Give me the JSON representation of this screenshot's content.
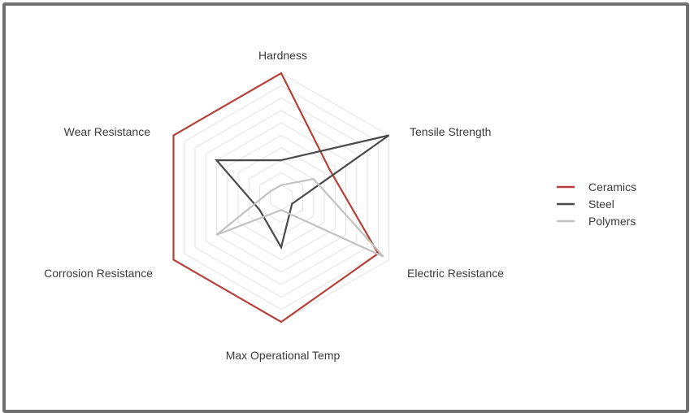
{
  "chart_data": {
    "type": "radar",
    "axes": [
      "Hardness",
      "Tensile Strength",
      "Electric Resistance",
      "Max Operational Temp",
      "Corrosion Resistance",
      "Wear Resistance"
    ],
    "range": [
      0,
      10
    ],
    "grid": true,
    "grid_levels": 10,
    "legend_placement": "right",
    "series": [
      {
        "name": "Ceramics",
        "color": "#b5413a",
        "values": [
          10,
          4.5,
          9,
          10,
          10,
          10
        ]
      },
      {
        "name": "Steel",
        "color": "#4a4a4a",
        "values": [
          3,
          10,
          1,
          4,
          2,
          6
        ]
      },
      {
        "name": "Polymers",
        "color": "#c2c2c2",
        "values": [
          1,
          3,
          9.5,
          1,
          6,
          1
        ]
      }
    ]
  }
}
